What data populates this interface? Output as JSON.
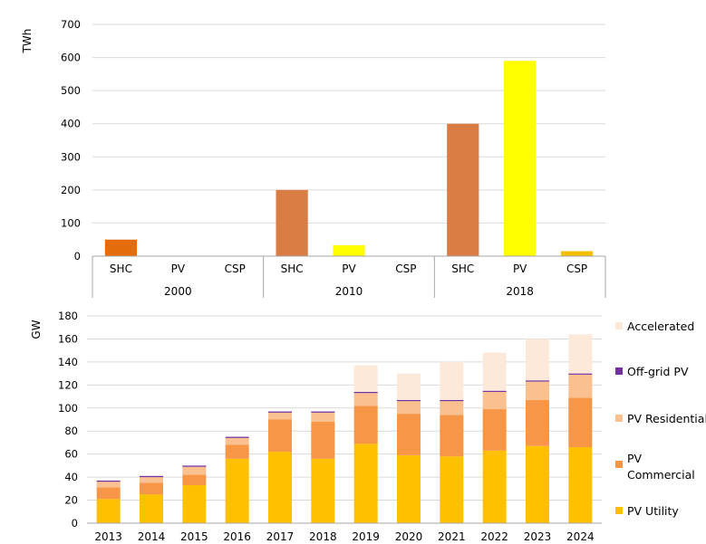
{
  "chart_data": [
    {
      "type": "bar",
      "ylabel": "TWh",
      "ylim": [
        0,
        700
      ],
      "yticks": [
        0,
        100,
        200,
        300,
        400,
        500,
        600,
        700
      ],
      "grid": true,
      "groups": [
        {
          "label": "2000",
          "bars": [
            {
              "category": "SHC",
              "value": 50,
              "color": "#e46c0a"
            },
            {
              "category": "PV",
              "value": 0,
              "color": "#ffff00"
            },
            {
              "category": "CSP",
              "value": 0,
              "color": "#f2c000"
            }
          ]
        },
        {
          "label": "2010",
          "bars": [
            {
              "category": "SHC",
              "value": 200,
              "color": "#d97d45"
            },
            {
              "category": "PV",
              "value": 33,
              "color": "#ffff00"
            },
            {
              "category": "CSP",
              "value": 0,
              "color": "#f2c000"
            }
          ]
        },
        {
          "label": "2018",
          "bars": [
            {
              "category": "SHC",
              "value": 400,
              "color": "#d97d45"
            },
            {
              "category": "PV",
              "value": 590,
              "color": "#ffff00"
            },
            {
              "category": "CSP",
              "value": 15,
              "color": "#f2c000"
            }
          ]
        }
      ]
    },
    {
      "type": "bar",
      "stacked": true,
      "ylabel": "GW",
      "ylim": [
        0,
        180
      ],
      "yticks": [
        0,
        20,
        40,
        60,
        80,
        100,
        120,
        140,
        160,
        180
      ],
      "grid": true,
      "legend_position": "right",
      "categories": [
        "2013",
        "2014",
        "2015",
        "2016",
        "2017",
        "2018",
        "2019",
        "2020",
        "2021",
        "2022",
        "2023",
        "2024"
      ],
      "series": [
        {
          "name": "PV Utility",
          "color": "#ffc000",
          "values": [
            21,
            25,
            33,
            56,
            62,
            56,
            69,
            59,
            58,
            63,
            67,
            66
          ]
        },
        {
          "name": "PV Commercial",
          "color": "#f79646",
          "values": [
            10,
            10,
            9,
            12,
            28,
            32,
            33,
            36,
            36,
            36,
            40,
            43
          ]
        },
        {
          "name": "PV Residential",
          "color": "#fac090",
          "values": [
            5,
            5,
            7,
            6,
            6,
            8,
            11,
            11,
            12,
            15,
            16,
            20
          ]
        },
        {
          "name": "Off-grid PV",
          "color": "#7030a0",
          "values": [
            1,
            1,
            1,
            1,
            1,
            1,
            1,
            1,
            1,
            1,
            1,
            1
          ]
        },
        {
          "name": "Accelerated",
          "color": "#fde9d9",
          "values": [
            0,
            0,
            0,
            0,
            0,
            0,
            23,
            23,
            33,
            33,
            36,
            34
          ]
        }
      ],
      "legend_order": [
        "Accelerated",
        "Off-grid PV",
        "PV Residential",
        "PV Commercial",
        "PV Utility"
      ]
    }
  ]
}
